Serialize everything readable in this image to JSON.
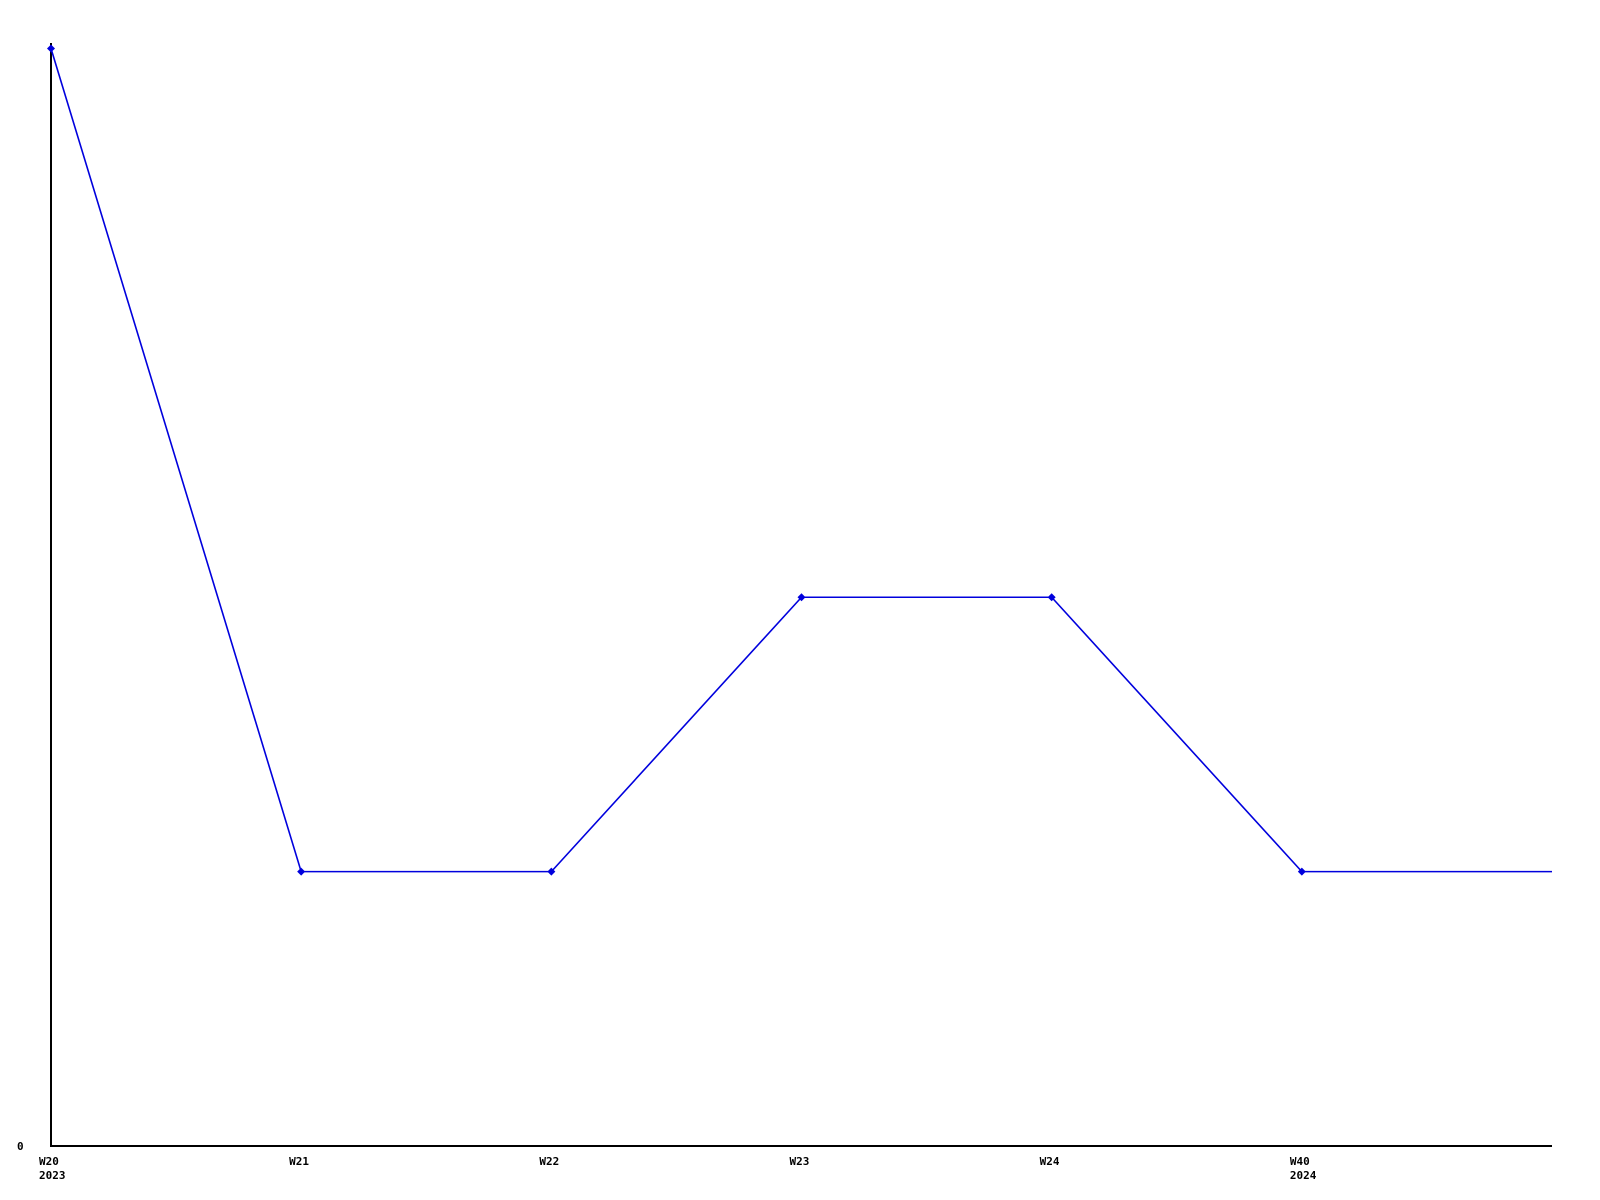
{
  "page": {
    "background_color": "#ffffff"
  },
  "chart_data": {
    "type": "line",
    "title": "",
    "xlabel": "",
    "ylabel": "",
    "ylim": [
      0,
      4.02
    ],
    "grid": false,
    "legend": "none",
    "axis_color": "#000000",
    "line_color": "#0000dd",
    "marker_shape": "diamond",
    "y_tick_labels": [
      "0"
    ],
    "categories": [
      "W20",
      "W21",
      "W22",
      "W23",
      "W24",
      "W40",
      ""
    ],
    "category_sublabels": [
      "2023",
      "",
      "",
      "",
      "",
      "2024",
      ""
    ],
    "values": [
      4,
      1,
      1,
      2,
      2,
      1,
      1
    ],
    "markers": [
      true,
      true,
      true,
      true,
      true,
      true,
      false
    ]
  }
}
